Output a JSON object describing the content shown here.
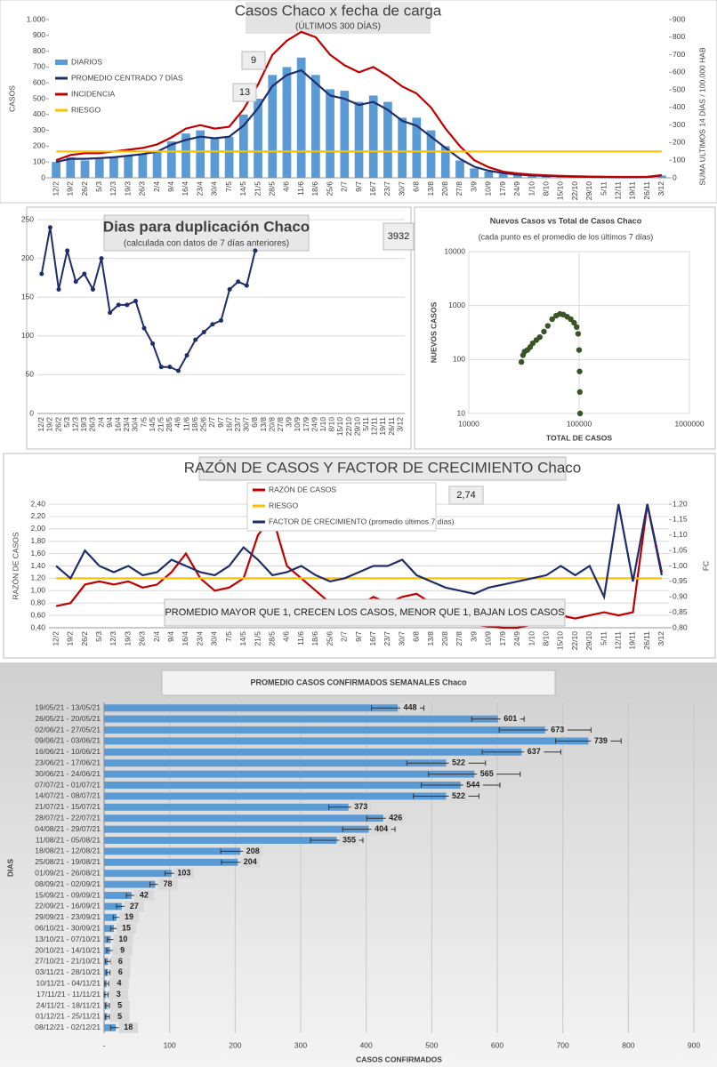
{
  "chart_data": [
    {
      "type": "combo",
      "title": "Casos Chaco x fecha de carga",
      "subtitle": "(ÚLTIMOS 300 DÍAS)",
      "y_label": "CASOS",
      "y2_label": "SUMA ULTIMOS 14 DÍAS / 100.000 HAB",
      "categories": [
        "12/2",
        "19/2",
        "26/2",
        "5/3",
        "12/3",
        "19/3",
        "26/3",
        "2/4",
        "9/4",
        "16/4",
        "23/4",
        "30/4",
        "7/5",
        "14/5",
        "21/5",
        "28/5",
        "4/6",
        "11/6",
        "18/6",
        "25/6",
        "2/7",
        "9/7",
        "16/7",
        "23/7",
        "30/7",
        "6/8",
        "13/8",
        "20/8",
        "27/8",
        "3/9",
        "10/9",
        "17/9",
        "24/9",
        "1/10",
        "8/10",
        "15/10",
        "22/10",
        "29/10",
        "5/11",
        "12/11",
        "19/11",
        "26/11",
        "3/12"
      ],
      "series": [
        {
          "name": "DIARIOS",
          "type": "bar",
          "color": "#5b9bd5",
          "values": [
            100,
            130,
            110,
            120,
            130,
            140,
            150,
            170,
            230,
            280,
            300,
            250,
            260,
            400,
            500,
            650,
            700,
            760,
            650,
            560,
            550,
            480,
            520,
            480,
            380,
            380,
            300,
            200,
            110,
            60,
            40,
            25,
            20,
            15,
            12,
            10,
            8,
            6,
            5,
            4,
            4,
            5,
            15
          ]
        },
        {
          "name": "PROMEDIO CENTRADO 7 DÍAS",
          "type": "line",
          "color": "#1f2d6b",
          "values": [
            100,
            120,
            120,
            125,
            130,
            140,
            150,
            165,
            210,
            240,
            260,
            250,
            260,
            330,
            440,
            580,
            650,
            680,
            600,
            520,
            500,
            460,
            480,
            430,
            360,
            330,
            260,
            190,
            120,
            70,
            45,
            30,
            20,
            15,
            12,
            10,
            8,
            6,
            5,
            4,
            4,
            5,
            15
          ]
        },
        {
          "name": "INCIDENCIA",
          "type": "line",
          "axis": "y2",
          "color": "#c00000",
          "values": [
            100,
            130,
            140,
            140,
            150,
            160,
            170,
            190,
            230,
            280,
            300,
            280,
            290,
            390,
            530,
            700,
            780,
            830,
            800,
            700,
            640,
            600,
            630,
            580,
            520,
            480,
            400,
            280,
            180,
            100,
            60,
            35,
            25,
            18,
            14,
            11,
            9,
            7,
            6,
            5,
            5,
            6,
            15
          ]
        },
        {
          "name": "RIESGO",
          "type": "line",
          "axis": "y2",
          "color": "#ffc000",
          "values": [
            150,
            150,
            150,
            150,
            150,
            150,
            150,
            150,
            150,
            150,
            150,
            150,
            150,
            150,
            150,
            150,
            150,
            150,
            150,
            150,
            150,
            150,
            150,
            150,
            150,
            150,
            150,
            150,
            150,
            150,
            150,
            150,
            150,
            150,
            150,
            150,
            150,
            150,
            150,
            150,
            150,
            150,
            150
          ]
        }
      ],
      "ylim": [
        0,
        1000
      ],
      "yticks": [
        0,
        100,
        200,
        300,
        400,
        500,
        600,
        700,
        800,
        900,
        {
          "value": 1000,
          "label": "1.000"
        }
      ],
      "y2lim": [
        0,
        900
      ],
      "y2ticks": [
        0,
        100,
        200,
        300,
        400,
        500,
        600,
        700,
        800,
        900
      ],
      "annotations": [
        "9",
        "13"
      ],
      "legend": "upper left",
      "grid": false
    },
    {
      "type": "line",
      "title": "Dias para duplicación Chaco",
      "subtitle": "(calculada con datos de 7 días anteriores)",
      "categories": [
        "12/2",
        "19/2",
        "26/2",
        "5/3",
        "12/3",
        "19/3",
        "26/3",
        "2/4",
        "9/4",
        "16/4",
        "23/4",
        "30/4",
        "7/5",
        "14/5",
        "21/5",
        "28/5",
        "4/6",
        "11/6",
        "18/6",
        "25/6",
        "2/7",
        "9/7",
        "16/7",
        "23/7",
        "30/7",
        "6/8",
        "13/8",
        "20/8",
        "27/8",
        "3/9",
        "10/9",
        "17/9",
        "24/9",
        "1/10",
        "8/10",
        "15/10",
        "22/10",
        "29/10",
        "5/11",
        "12/11",
        "19/11",
        "26/11",
        "3/12"
      ],
      "values": [
        180,
        240,
        160,
        210,
        170,
        180,
        160,
        200,
        130,
        140,
        140,
        145,
        110,
        90,
        60,
        60,
        55,
        75,
        95,
        105,
        115,
        120,
        160,
        170,
        165,
        210,
        null,
        null,
        null,
        null,
        null,
        null,
        null,
        null,
        null,
        null,
        null,
        null,
        null,
        null,
        null,
        null,
        null
      ],
      "color": "#1f2d6b",
      "ylim": [
        0,
        250
      ],
      "yticks": [
        0,
        50,
        100,
        150,
        200,
        250
      ],
      "annotations": [
        "3932"
      ],
      "grid": true
    },
    {
      "type": "scatter",
      "title": "Nuevos Casos vs Total de Casos Chaco",
      "subtitle": "(cada punto es el promedio de los últimos 7 días)",
      "x_label": "TOTAL DE CASOS",
      "y_label": "NUEVOS CASOS",
      "x": [
        30000,
        31000,
        32000,
        34000,
        36000,
        38000,
        41000,
        44000,
        48000,
        52000,
        57000,
        62000,
        67000,
        72000,
        78000,
        84000,
        90000,
        95000,
        98000,
        100000,
        101000,
        101500,
        102000
      ],
      "y": [
        90,
        120,
        140,
        150,
        170,
        200,
        230,
        260,
        330,
        420,
        560,
        650,
        700,
        680,
        620,
        560,
        480,
        400,
        300,
        150,
        60,
        25,
        10
      ],
      "color": "#375623",
      "log_x": true,
      "log_y": true,
      "xlim": [
        10000,
        1000000
      ],
      "xticks": [
        10000,
        100000,
        1000000
      ],
      "ylim": [
        10,
        10000
      ],
      "yticks": [
        10,
        100,
        1000,
        10000
      ],
      "grid": true
    },
    {
      "type": "line",
      "title": "RAZÓN DE CASOS Y FACTOR DE CRECIMIENTO Chaco",
      "y_label": "RAZÓN DE CASOS",
      "y2_label": "FC",
      "categories": [
        "12/2",
        "19/2",
        "26/2",
        "5/3",
        "12/3",
        "19/3",
        "26/3",
        "2/4",
        "9/4",
        "16/4",
        "23/4",
        "30/4",
        "7/5",
        "14/5",
        "21/5",
        "28/5",
        "4/6",
        "11/6",
        "18/6",
        "25/6",
        "2/7",
        "9/7",
        "16/7",
        "23/7",
        "30/7",
        "6/8",
        "13/8",
        "20/8",
        "27/8",
        "3/9",
        "10/9",
        "17/9",
        "24/9",
        "1/10",
        "8/10",
        "15/10",
        "22/10",
        "29/10",
        "5/11",
        "12/11",
        "19/11",
        "26/11",
        "3/12"
      ],
      "series": [
        {
          "name": "RAZÓN DE CASOS",
          "color": "#c00000",
          "values": [
            0.75,
            0.8,
            1.1,
            1.15,
            1.1,
            1.15,
            1.05,
            1.1,
            1.3,
            1.6,
            1.2,
            1.0,
            1.05,
            1.2,
            1.9,
            2.2,
            1.4,
            1.2,
            1.0,
            0.8,
            0.7,
            0.75,
            0.9,
            0.8,
            0.9,
            0.95,
            0.8,
            0.6,
            0.5,
            0.45,
            0.42,
            0.4,
            0.4,
            0.45,
            0.5,
            0.6,
            0.55,
            0.6,
            0.65,
            0.6,
            0.65,
            2.4,
            1.3
          ]
        },
        {
          "name": "RIESGO",
          "color": "#ffc000",
          "values": [
            1.2,
            1.2,
            1.2,
            1.2,
            1.2,
            1.2,
            1.2,
            1.2,
            1.2,
            1.2,
            1.2,
            1.2,
            1.2,
            1.2,
            1.2,
            1.2,
            1.2,
            1.2,
            1.2,
            1.2,
            1.2,
            1.2,
            1.2,
            1.2,
            1.2,
            1.2,
            1.2,
            1.2,
            1.2,
            1.2,
            1.2,
            1.2,
            1.2,
            1.2,
            1.2,
            1.2,
            1.2,
            1.2,
            1.2,
            1.2,
            1.2,
            1.2,
            1.2
          ]
        },
        {
          "name": "FACTOR DE CRECIMIENTO (promedio últimos 7 días)",
          "axis": "y2",
          "color": "#1f2d6b",
          "values": [
            1.0,
            0.96,
            1.05,
            1.0,
            0.98,
            1.0,
            0.97,
            0.98,
            1.02,
            1.0,
            0.98,
            0.97,
            1.0,
            1.06,
            1.02,
            0.97,
            0.98,
            1.0,
            0.97,
            0.95,
            0.96,
            0.98,
            1.0,
            1.0,
            1.02,
            0.97,
            0.95,
            0.93,
            0.92,
            0.91,
            0.93,
            0.94,
            0.95,
            0.96,
            0.97,
            1.0,
            0.97,
            1.0,
            0.9,
            1.2,
            0.95,
            1.2,
            0.97
          ]
        }
      ],
      "ylim": [
        0.4,
        2.4
      ],
      "yticks": [
        {
          "value": 0.4,
          "label": "0,40"
        },
        {
          "value": 0.6,
          "label": "0,60"
        },
        {
          "value": 0.8,
          "label": "0,80"
        },
        {
          "value": 1.0,
          "label": "1,00"
        },
        {
          "value": 1.2,
          "label": "1,20"
        },
        {
          "value": 1.4,
          "label": "1,40"
        },
        {
          "value": 1.6,
          "label": "1,60"
        },
        {
          "value": 1.8,
          "label": "1,80"
        },
        {
          "value": 2.0,
          "label": "2,00"
        },
        {
          "value": 2.2,
          "label": "2,20"
        },
        {
          "value": 2.4,
          "label": "2,40"
        }
      ],
      "y2lim": [
        0.8,
        1.2
      ],
      "y2ticks": [
        {
          "value": 0.8,
          "label": "0,80"
        },
        {
          "value": 0.85,
          "label": "0,85"
        },
        {
          "value": 0.9,
          "label": "0,90"
        },
        {
          "value": 0.95,
          "label": "0,95"
        },
        {
          "value": 1.0,
          "label": "1,00"
        },
        {
          "value": 1.05,
          "label": "1,05"
        },
        {
          "value": 1.1,
          "label": "1,10"
        },
        {
          "value": 1.15,
          "label": "1,15"
        },
        {
          "value": 1.2,
          "label": "1,20"
        }
      ],
      "annotations": [
        "2,74",
        "PROMEDIO MAYOR QUE 1, CRECEN LOS CASOS, MENOR QUE 1, BAJAN LOS CASOS"
      ],
      "legend": "upper center",
      "grid": true
    },
    {
      "type": "barh",
      "title": "PROMEDIO CASOS CONFIRMADOS SEMANALES Chaco",
      "x_label": "CASOS CONFIRMADOS",
      "y_label": "DIAS",
      "categories": [
        "19/05/21 - 13/05/21",
        "26/05/21 - 20/05/21",
        "02/06/21 - 27/05/21",
        "09/06/21 - 03/06/21",
        "16/06/21 - 10/06/21",
        "23/06/21 - 17/06/21",
        "30/06/21 - 24/06/21",
        "07/07/21 - 01/07/21",
        "14/07/21 - 08/07/21",
        "21/07/21 - 15/07/21",
        "28/07/21 - 22/07/21",
        "04/08/21 - 29/07/21",
        "11/08/21 - 05/08/21",
        "18/08/21 - 12/08/21",
        "25/08/21 - 19/08/21",
        "01/09/21 - 26/08/21",
        "08/09/21 - 02/09/21",
        "15/09/21 - 09/09/21",
        "22/09/21 - 16/09/21",
        "29/09/21 - 23/09/21",
        "06/10/21 - 30/09/21",
        "13/10/21 - 07/10/21",
        "20/10/21 - 14/10/21",
        "27/10/21 - 21/10/21",
        "03/11/21 - 28/10/21",
        "10/11/21 - 04/11/21",
        "17/11/21 - 11/11/21",
        "24/11/21 - 18/11/21",
        "01/12/21 - 25/11/21",
        "08/12/21 - 02/12/21"
      ],
      "values": [
        448,
        601,
        673,
        739,
        637,
        522,
        565,
        544,
        522,
        373,
        426,
        404,
        355,
        208,
        204,
        103,
        78,
        42,
        27,
        19,
        15,
        10,
        9,
        6,
        6,
        4,
        3,
        5,
        5,
        18
      ],
      "errors": [
        40,
        40,
        70,
        50,
        60,
        60,
        70,
        60,
        50,
        30,
        25,
        40,
        40,
        30,
        25,
        10,
        8,
        8,
        8,
        5,
        5,
        5,
        5,
        4,
        3,
        3,
        3,
        3,
        3,
        8
      ],
      "color": "#5b9bd5",
      "xlim": [
        0,
        900
      ],
      "xticks": [
        {
          "value": 0,
          "label": "-"
        },
        100,
        200,
        300,
        400,
        500,
        600,
        700,
        800,
        900
      ],
      "grid": true
    }
  ]
}
